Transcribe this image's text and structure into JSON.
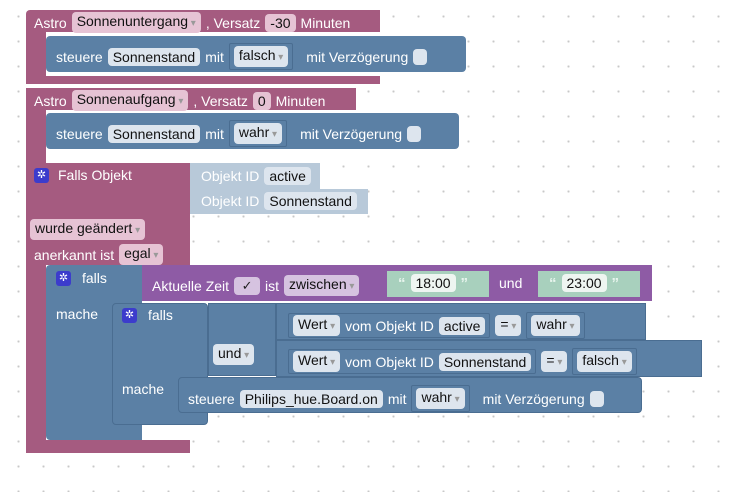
{
  "astro1": {
    "label": "Astro",
    "event": "Sonnenuntergang",
    "offset_label": ", Versatz",
    "offset": "-30",
    "unit": "Minuten",
    "action": {
      "label": "steuere",
      "target": "Sonnenstand",
      "with": "mit",
      "value": "falsch",
      "delay": "mit Verzögerung"
    }
  },
  "astro2": {
    "label": "Astro",
    "event": "Sonnenaufgang",
    "offset_label": ", Versatz",
    "offset": "0",
    "unit": "Minuten",
    "action": {
      "label": "steuere",
      "target": "Sonnenstand",
      "with": "mit",
      "value": "wahr",
      "delay": "mit Verzögerung"
    }
  },
  "trigger": {
    "label": "Falls Objekt",
    "obj_label": "Objekt ID",
    "objects": [
      "active",
      "Sonnenstand"
    ],
    "changed": "wurde geändert",
    "ack_label": "anerkannt ist",
    "ack": "egal"
  },
  "if1": {
    "falls": "falls",
    "mache": "mache",
    "time_label": "Aktuelle Zeit",
    "check": "✓",
    "ist": "ist",
    "mode": "zwischen",
    "from": "18:00",
    "und": "und",
    "to": "23:00",
    "open_q": "“",
    "close_q": "”"
  },
  "if2": {
    "falls": "falls",
    "mache": "mache",
    "logic": "und",
    "cmp1": {
      "kind": "Wert",
      "of": "vom Objekt ID",
      "obj": "active",
      "op": "=",
      "val": "wahr"
    },
    "cmp2": {
      "kind": "Wert",
      "of": "vom Objekt ID",
      "obj": "Sonnenstand",
      "op": "=",
      "val": "falsch"
    },
    "action": {
      "label": "steuere",
      "target": "Philips_hue.Board.on",
      "with": "mit",
      "value": "wahr",
      "delay": "mit Verzögerung"
    }
  },
  "colors": {
    "event": "#a55b80",
    "action": "#5b80a5",
    "time": "#8e5ba5"
  }
}
